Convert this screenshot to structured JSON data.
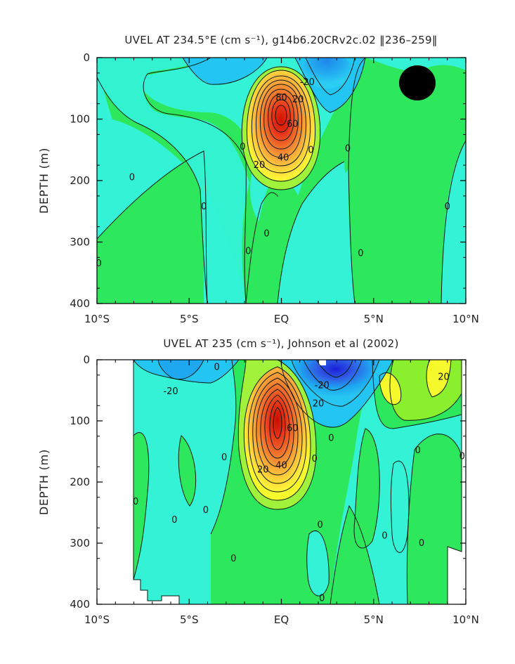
{
  "chart_data": [
    {
      "type": "heatmap",
      "subtype": "filled contour section",
      "title": "UVEL AT 234.5°E (cm s⁻¹), g14b6.20CRv2c.02 ‖236–259‖",
      "xlabel": "",
      "ylabel": "DEPTH (m)",
      "xlim": [
        -10,
        10
      ],
      "ylim": [
        400,
        0
      ],
      "x_ticks": [
        -10,
        -5,
        0,
        5,
        10
      ],
      "x_tick_labels": [
        "10°S",
        "5°S",
        "EQ",
        "5°N",
        "10°N"
      ],
      "y_ticks": [
        0,
        100,
        200,
        300,
        400
      ],
      "y_tick_labels": [
        "0",
        "100",
        "200",
        "300",
        "400"
      ],
      "contour_interval": 10,
      "contour_labels": [
        {
          "text": "80",
          "x": 0.0,
          "y": 65
        },
        {
          "text": "20",
          "x": 0.9,
          "y": 68
        },
        {
          "text": "60",
          "x": 0.6,
          "y": 108
        },
        {
          "text": "40",
          "x": 0.1,
          "y": 163
        },
        {
          "text": "20",
          "x": -1.2,
          "y": 175
        },
        {
          "text": "-20",
          "x": 1.4,
          "y": 40
        },
        {
          "text": "0",
          "x": -2.1,
          "y": 145
        },
        {
          "text": "0",
          "x": 1.6,
          "y": 150
        },
        {
          "text": "0",
          "x": 3.6,
          "y": 148
        },
        {
          "text": "0",
          "x": -8.1,
          "y": 195
        },
        {
          "text": "0",
          "x": -4.2,
          "y": 242
        },
        {
          "text": "0",
          "x": -0.8,
          "y": 286
        },
        {
          "text": "0",
          "x": -1.8,
          "y": 315
        },
        {
          "text": "0",
          "x": 4.3,
          "y": 318
        },
        {
          "text": "0",
          "x": -9.9,
          "y": 335
        },
        {
          "text": "0",
          "x": 9.0,
          "y": 242
        }
      ],
      "features": [
        {
          "name": "equatorial undercurrent core",
          "x": 0.0,
          "y": 90,
          "max_value": 100
        },
        {
          "name": "westward surface flow",
          "x": 2.8,
          "y": 15,
          "min_value": -30
        },
        {
          "name": "weak eastward eddy",
          "x": 7.3,
          "y": 40,
          "value": 10
        }
      ]
    },
    {
      "type": "heatmap",
      "subtype": "filled contour section",
      "title": "UVEL AT 235 (cm s⁻¹), Johnson et al (2002)",
      "xlabel": "",
      "ylabel": "DEPTH (m)",
      "xlim": [
        -10,
        10
      ],
      "ylim": [
        400,
        0
      ],
      "x_ticks": [
        -10,
        -5,
        0,
        5,
        10
      ],
      "x_tick_labels": [
        "10°S",
        "5°S",
        "EQ",
        "5°N",
        "10°N"
      ],
      "y_ticks": [
        0,
        100,
        200,
        300,
        400
      ],
      "y_tick_labels": [
        "0",
        "100",
        "200",
        "300",
        "400"
      ],
      "contour_interval": 10,
      "data_extent_x": [
        -8.0,
        9.8
      ],
      "contour_labels": [
        {
          "text": "-20",
          "x": -6.0,
          "y": 52
        },
        {
          "text": "0",
          "x": -3.5,
          "y": 12
        },
        {
          "text": "-20",
          "x": 2.2,
          "y": 42
        },
        {
          "text": "20",
          "x": 2.0,
          "y": 72
        },
        {
          "text": "60",
          "x": 0.6,
          "y": 112
        },
        {
          "text": "40",
          "x": 0.0,
          "y": 173
        },
        {
          "text": "20",
          "x": -1.0,
          "y": 180
        },
        {
          "text": "20",
          "x": 8.8,
          "y": 28
        },
        {
          "text": "0",
          "x": -3.1,
          "y": 160
        },
        {
          "text": "0",
          "x": 1.8,
          "y": 162
        },
        {
          "text": "0",
          "x": 2.7,
          "y": 128
        },
        {
          "text": "0",
          "x": 7.4,
          "y": 148
        },
        {
          "text": "0",
          "x": 9.8,
          "y": 158
        },
        {
          "text": "0",
          "x": -7.9,
          "y": 232
        },
        {
          "text": "0",
          "x": -5.8,
          "y": 262
        },
        {
          "text": "0",
          "x": -4.1,
          "y": 246
        },
        {
          "text": "0",
          "x": 2.1,
          "y": 270
        },
        {
          "text": "0",
          "x": 5.6,
          "y": 288
        },
        {
          "text": "0",
          "x": 7.6,
          "y": 300
        },
        {
          "text": "0",
          "x": -2.6,
          "y": 325
        },
        {
          "text": "0",
          "x": 2.2,
          "y": 390
        }
      ],
      "features": [
        {
          "name": "equatorial undercurrent core",
          "x": -0.2,
          "y": 90,
          "max_value": 100
        },
        {
          "name": "westward surface jet",
          "x": 2.8,
          "y": 12,
          "min_value": -60
        },
        {
          "name": "north eastward flow",
          "x": 8.3,
          "y": 40,
          "value": 20
        }
      ]
    }
  ]
}
